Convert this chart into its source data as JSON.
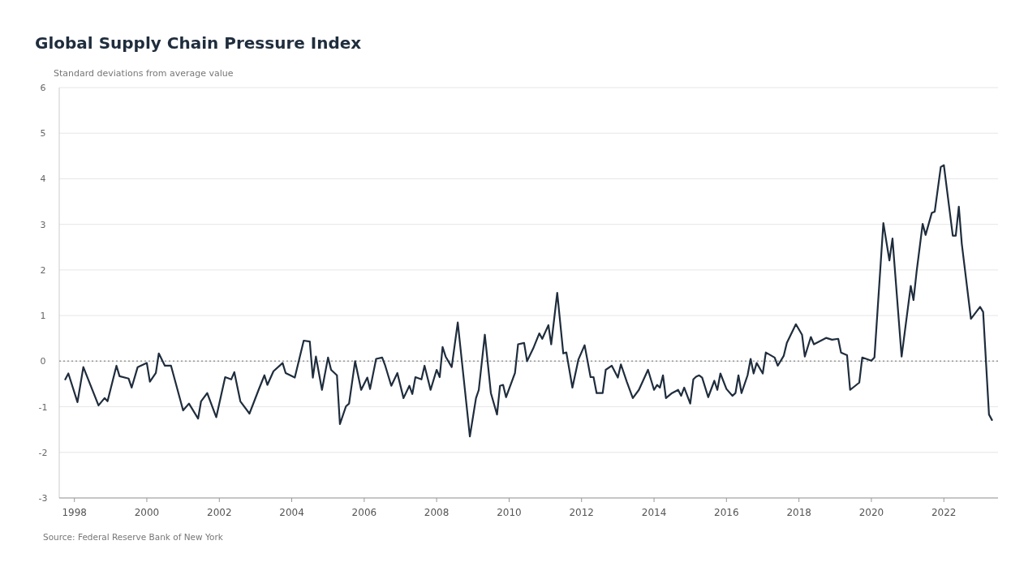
{
  "chart_data": {
    "type": "line",
    "title": "Global Supply Chain Pressure Index",
    "ylabel": "Standard deviations from average value",
    "annotations": [
      "Source: Federal Reserve Bank of New York"
    ],
    "x": [
      "1997-10",
      "1997-11",
      "1998-02",
      "1998-04",
      "1998-09",
      "1998-11",
      "1998-12",
      "1999-03",
      "1999-04",
      "1999-07",
      "1999-08",
      "1999-10",
      "2000-01",
      "2000-02",
      "2000-04",
      "2000-05",
      "2000-07",
      "2000-09",
      "2001-01",
      "2001-03",
      "2001-06",
      "2001-07",
      "2001-09",
      "2001-12",
      "2002-03",
      "2002-05",
      "2002-06",
      "2002-08",
      "2002-11",
      "2003-02",
      "2003-04",
      "2003-05",
      "2003-07",
      "2003-10",
      "2003-11",
      "2004-02",
      "2004-05",
      "2004-07",
      "2004-08",
      "2004-09",
      "2004-11",
      "2005-01",
      "2005-02",
      "2005-04",
      "2005-05",
      "2005-07",
      "2005-08",
      "2005-10",
      "2005-12",
      "2006-02",
      "2006-03",
      "2006-05",
      "2006-07",
      "2006-08",
      "2006-10",
      "2006-12",
      "2007-02",
      "2007-04",
      "2007-05",
      "2007-06",
      "2007-08",
      "2007-09",
      "2007-11",
      "2008-01",
      "2008-02",
      "2008-03",
      "2008-04",
      "2008-06",
      "2008-08",
      "2008-12",
      "2009-02",
      "2009-03",
      "2009-05",
      "2009-07",
      "2009-09",
      "2009-10",
      "2009-11",
      "2009-12",
      "2010-03",
      "2010-04",
      "2010-06",
      "2010-07",
      "2010-09",
      "2010-11",
      "2010-12",
      "2011-02",
      "2011-03",
      "2011-05",
      "2011-07",
      "2011-08",
      "2011-10",
      "2011-12",
      "2012-02",
      "2012-04",
      "2012-05",
      "2012-06",
      "2012-08",
      "2012-09",
      "2012-11",
      "2013-01",
      "2013-02",
      "2013-04",
      "2013-06",
      "2013-08",
      "2013-11",
      "2014-01",
      "2014-02",
      "2014-03",
      "2014-04",
      "2014-05",
      "2014-07",
      "2014-09",
      "2014-10",
      "2014-11",
      "2015-01",
      "2015-02",
      "2015-03",
      "2015-04",
      "2015-05",
      "2015-07",
      "2015-09",
      "2015-10",
      "2015-11",
      "2016-01",
      "2016-03",
      "2016-04",
      "2016-05",
      "2016-06",
      "2016-08",
      "2016-09",
      "2016-10",
      "2016-11",
      "2017-01",
      "2017-02",
      "2017-05",
      "2017-06",
      "2017-08",
      "2017-09",
      "2017-12",
      "2018-02",
      "2018-03",
      "2018-05",
      "2018-06",
      "2018-10",
      "2018-12",
      "2019-02",
      "2019-03",
      "2019-05",
      "2019-06",
      "2019-09",
      "2019-10",
      "2020-01",
      "2020-02",
      "2020-05",
      "2020-07",
      "2020-08",
      "2020-11",
      "2021-02",
      "2021-03",
      "2021-04",
      "2021-06",
      "2021-07",
      "2021-09",
      "2021-10",
      "2021-12",
      "2022-01",
      "2022-04",
      "2022-05",
      "2022-06",
      "2022-07",
      "2022-10",
      "2023-01",
      "2023-02",
      "2023-04",
      "2023-05"
    ],
    "series": [
      {
        "color": "#1f2d3d",
        "values": [
          -0.4,
          -0.27,
          -0.9,
          -0.13,
          -0.97,
          -0.81,
          -0.88,
          -0.1,
          -0.33,
          -0.38,
          -0.58,
          -0.13,
          -0.04,
          -0.45,
          -0.26,
          0.17,
          -0.1,
          -0.1,
          -1.08,
          -0.93,
          -1.26,
          -0.88,
          -0.7,
          -1.23,
          -0.35,
          -0.4,
          -0.24,
          -0.88,
          -1.15,
          -0.63,
          -0.31,
          -0.52,
          -0.22,
          -0.04,
          -0.26,
          -0.36,
          0.45,
          0.43,
          -0.36,
          0.1,
          -0.63,
          0.08,
          -0.19,
          -0.31,
          -1.38,
          -0.99,
          -0.93,
          0.0,
          -0.63,
          -0.36,
          -0.61,
          0.05,
          0.08,
          -0.1,
          -0.54,
          -0.26,
          -0.81,
          -0.54,
          -0.72,
          -0.35,
          -0.4,
          -0.1,
          -0.63,
          -0.19,
          -0.35,
          0.31,
          0.1,
          -0.13,
          0.85,
          -1.65,
          -0.81,
          -0.63,
          0.58,
          -0.7,
          -1.17,
          -0.54,
          -0.52,
          -0.79,
          -0.26,
          0.37,
          0.4,
          0.0,
          0.28,
          0.61,
          0.49,
          0.79,
          0.37,
          1.5,
          0.17,
          0.19,
          -0.58,
          0.04,
          0.35,
          -0.35,
          -0.35,
          -0.7,
          -0.7,
          -0.19,
          -0.1,
          -0.36,
          -0.07,
          -0.45,
          -0.81,
          -0.63,
          -0.19,
          -0.63,
          -0.52,
          -0.58,
          -0.31,
          -0.81,
          -0.7,
          -0.63,
          -0.76,
          -0.58,
          -0.93,
          -0.4,
          -0.34,
          -0.31,
          -0.36,
          -0.79,
          -0.43,
          -0.63,
          -0.27,
          -0.61,
          -0.76,
          -0.7,
          -0.31,
          -0.7,
          -0.31,
          0.05,
          -0.27,
          -0.04,
          -0.27,
          0.19,
          0.08,
          -0.1,
          0.12,
          0.4,
          0.81,
          0.58,
          0.1,
          0.53,
          0.37,
          0.51,
          0.47,
          0.49,
          0.19,
          0.13,
          -0.63,
          -0.47,
          0.08,
          0.01,
          0.08,
          3.03,
          2.21,
          2.69,
          0.1,
          1.65,
          1.34,
          1.96,
          3.01,
          2.77,
          3.25,
          3.28,
          4.26,
          4.3,
          2.75,
          2.75,
          3.39,
          2.57,
          0.93,
          1.19,
          1.08,
          -1.17,
          -1.29
        ]
      }
    ],
    "xlim": [
      "1997-08",
      "2023-07"
    ],
    "xticks": [
      "1998",
      "2000",
      "2002",
      "2004",
      "2006",
      "2008",
      "2010",
      "2012",
      "2014",
      "2016",
      "2018",
      "2020",
      "2022"
    ],
    "ylim": [
      -3,
      6
    ],
    "yticks": [
      -3,
      -2,
      -1,
      0,
      1,
      2,
      3,
      4,
      5,
      6
    ],
    "grid": "y",
    "ref_lines": [
      {
        "axis": "y",
        "value": 0,
        "color": "#9a9a9a",
        "line_style": "dotted"
      }
    ],
    "marker": "none",
    "line_style": "solid"
  }
}
